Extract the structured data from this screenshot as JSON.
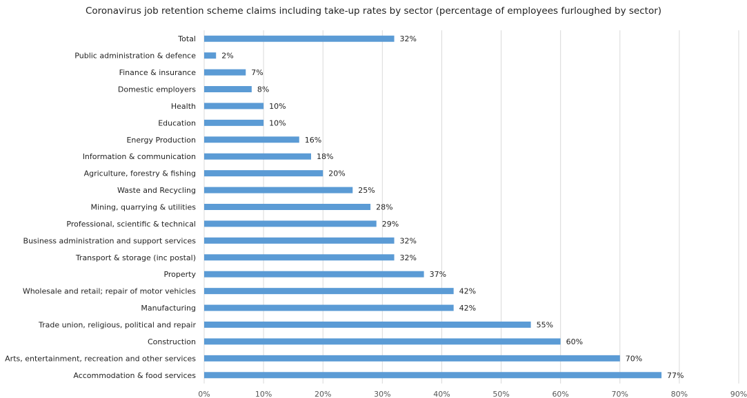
{
  "chart_data": {
    "type": "bar",
    "orientation": "horizontal",
    "title": "Coronavirus job retention scheme claims including take-up rates by sector (percentage of employees furloughed by sector)",
    "categories": [
      "Total",
      "Public administration & defence",
      "Finance & insurance",
      "Domestic employers",
      "Health",
      "Education",
      "Energy Production",
      "Information & communication",
      "Agriculture, forestry & fishing",
      "Waste and Recycling",
      "Mining, quarrying & utilities",
      "Professional, scientific & technical",
      "Business administration and support services",
      "Transport & storage (inc postal)",
      "Property",
      "Wholesale and retail; repair of motor vehicles",
      "Manufacturing",
      "Trade union, religious, political and repair",
      "Construction",
      "Arts, entertainment, recreation and other services",
      "Accommodation & food services"
    ],
    "values": [
      32,
      2,
      7,
      8,
      10,
      10,
      16,
      18,
      20,
      25,
      28,
      29,
      32,
      32,
      37,
      42,
      42,
      55,
      60,
      70,
      77
    ],
    "value_labels": [
      "32%",
      "2%",
      "7%",
      "8%",
      "10%",
      "10%",
      "16%",
      "18%",
      "20%",
      "25%",
      "28%",
      "29%",
      "32%",
      "32%",
      "37%",
      "42%",
      "42%",
      "55%",
      "60%",
      "70%",
      "77%"
    ],
    "xlim": [
      0,
      90
    ],
    "x_ticks": [
      "0%",
      "10%",
      "20%",
      "30%",
      "40%",
      "50%",
      "60%",
      "70%",
      "80%",
      "90%"
    ],
    "grid": true,
    "bar_color": "#5b9bd5"
  }
}
